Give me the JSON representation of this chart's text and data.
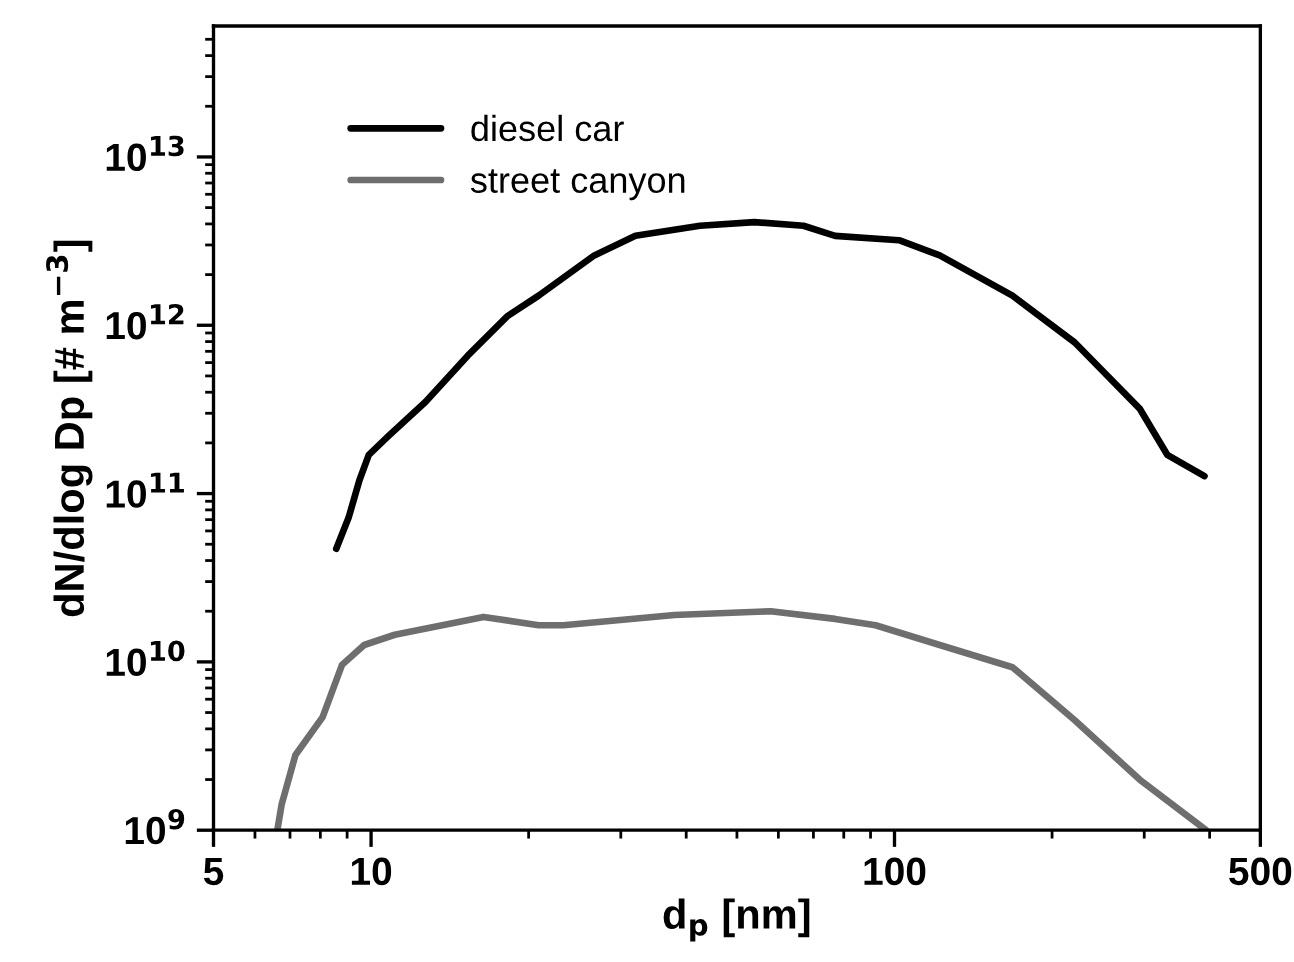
{
  "chart_data": {
    "type": "line",
    "xlabel": "d$_{p}$ [nm]",
    "ylabel": "dN/dlog Dp [# m$^{−3}$]",
    "series": [
      {
        "name": "diesel car",
        "color": "#000000",
        "x": [
          8.58,
          9.06,
          9.5,
          9.9,
          10.8,
          12.7,
          15.3,
          18.2,
          20.9,
          26.7,
          32,
          42.5,
          54,
          67,
          77,
          102,
          122,
          168,
          221,
          294,
          316,
          332,
          391
        ],
        "values": [
          47000000000.0,
          72000000000.0,
          120000000000.0,
          170000000000.0,
          220000000000.0,
          350000000000.0,
          660000000000.0,
          1130000000000.0,
          1500000000000.0,
          2600000000000.0,
          3400000000000.0,
          3900000000000.0,
          4100000000000.0,
          3900000000000.0,
          3400000000000.0,
          3200000000000.0,
          2600000000000.0,
          1500000000000.0,
          790000000000.0,
          320000000000.0,
          220000000000.0,
          170000000000.0,
          127000000000.0
        ]
      },
      {
        "name": "street canyon",
        "color": "#6e6e6e",
        "x": [
          6.62,
          6.75,
          7.17,
          8.08,
          8.8,
          9.7,
          11.1,
          16.4,
          20.9,
          23.3,
          38,
          58,
          77,
          92,
          122,
          168,
          221,
          294,
          394
        ],
        "values": [
          1000000000.0,
          1430000000.0,
          2800000000.0,
          4700000000.0,
          9600000000.0,
          12600000000.0,
          14500000000.0,
          18500000000.0,
          16500000000.0,
          16500000000.0,
          19000000000.0,
          20000000000.0,
          18000000000.0,
          16500000000.0,
          12600000000.0,
          9300000000.0,
          4500000000.0,
          2000000000.0,
          1000000000.0
        ]
      }
    ],
    "log": "xy",
    "xlim": [
      5,
      500
    ],
    "xticks": [
      5,
      10,
      100,
      500
    ],
    "ylim": [
      1000000000.0,
      60000000000000.0
    ],
    "yticks": [
      {
        "value": 1000000000.0,
        "label": "10$^{9}$"
      },
      {
        "value": 10000000000.0,
        "label": "10$^{10}$"
      },
      {
        "value": 100000000000.0,
        "label": "10$^{11}$"
      },
      {
        "value": 1000000000000.0,
        "label": "10$^{12}$"
      },
      {
        "value": 10000000000000.0,
        "label": "10$^{13}$"
      }
    ],
    "legend": "top left",
    "line_style": "solid",
    "marker": "none",
    "grid": false
  }
}
